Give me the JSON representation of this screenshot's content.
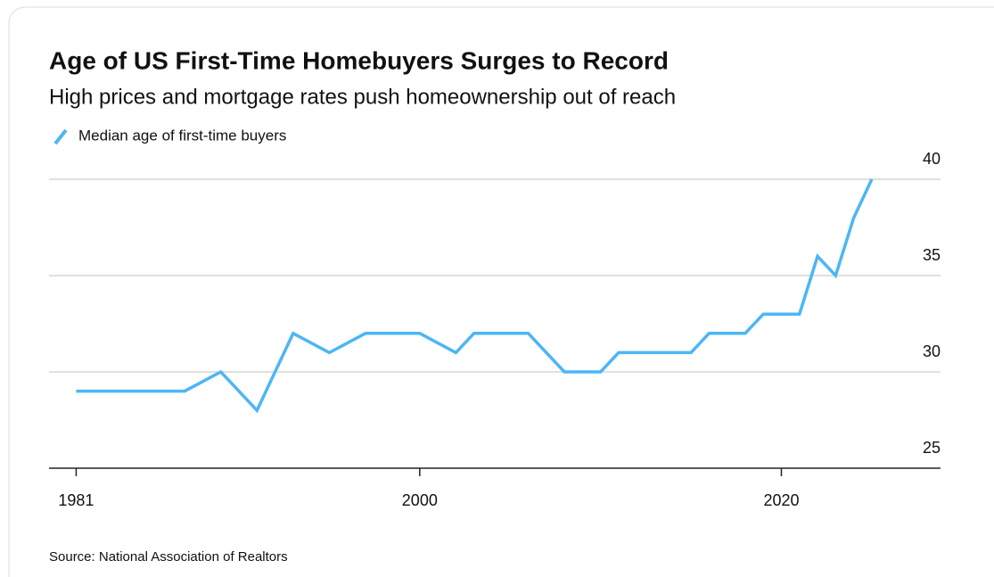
{
  "chart_data": {
    "type": "line",
    "title": "Age of US First-Time Homebuyers Surges to Record",
    "subtitle": "High prices and mortgage rates push homeownership out of reach",
    "source": "Source: National Association of Realtors",
    "x": [
      1981,
      1987,
      1989,
      1991,
      1993,
      1995,
      1997,
      2000,
      2002,
      2003,
      2006,
      2008,
      2010,
      2011,
      2015,
      2016,
      2018,
      2019,
      2021,
      2022,
      2023,
      2024,
      2025
    ],
    "series": [
      {
        "name": "Median age of first-time buyers",
        "color": "#4db6f5",
        "values": [
          29,
          29,
          30,
          28,
          32,
          31,
          32,
          32,
          31,
          32,
          32,
          30,
          30,
          31,
          31,
          32,
          32,
          33,
          33,
          36,
          35,
          38,
          40
        ]
      }
    ],
    "xlim": [
      1979.5,
      2028.8
    ],
    "xticks": [
      1981,
      2000,
      2020
    ],
    "ylim": [
      25,
      40
    ],
    "yticks": [
      25,
      30,
      35,
      40
    ],
    "grid": true
  }
}
